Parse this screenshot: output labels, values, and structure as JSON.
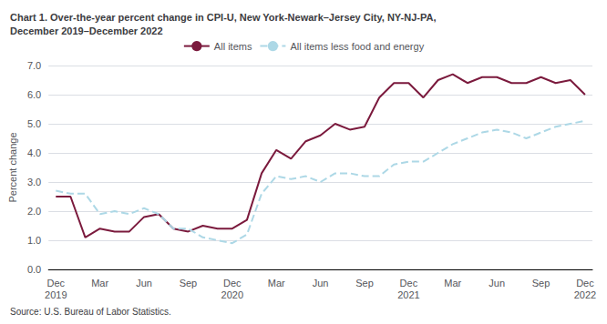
{
  "chart_data": {
    "type": "line",
    "title": "Chart 1. Over-the-year percent change in CPI-U, New York-Newark–Jersey City, NY-NJ-PA,\nDecember 2019–December 2022",
    "ylabel": "Percent change",
    "source": "Source: U.S. Bureau of Labor Statistics.",
    "categories": [
      "Dec\n2019",
      null,
      null,
      "Mar",
      null,
      null,
      "Jun",
      null,
      null,
      "Sep",
      null,
      null,
      "Dec\n2020",
      null,
      null,
      "Mar",
      null,
      null,
      "Jun",
      null,
      null,
      "Sep",
      null,
      null,
      "Dec\n2021",
      null,
      null,
      "Mar",
      null,
      null,
      "Jun",
      null,
      null,
      "Sep",
      null,
      null,
      "Dec\n2022"
    ],
    "series": [
      {
        "name": "All items",
        "color": "#7b1a3d",
        "line_style": "solid",
        "values": [
          2.5,
          2.5,
          1.1,
          1.4,
          1.3,
          1.3,
          1.8,
          1.9,
          1.4,
          1.3,
          1.5,
          1.4,
          1.4,
          1.7,
          3.3,
          4.1,
          3.8,
          4.4,
          4.6,
          5.0,
          4.8,
          4.9,
          5.9,
          6.4,
          6.4,
          5.9,
          6.5,
          6.7,
          6.4,
          6.6,
          6.6,
          6.4,
          6.4,
          6.6,
          6.4,
          6.5,
          6.0
        ]
      },
      {
        "name": "All items less food and energy",
        "color": "#add8e6",
        "line_style": "dashed",
        "values": [
          2.7,
          2.6,
          2.6,
          1.9,
          2.0,
          1.9,
          2.1,
          1.9,
          1.4,
          1.4,
          1.1,
          1.0,
          0.9,
          1.2,
          2.6,
          3.2,
          3.1,
          3.2,
          3.0,
          3.3,
          3.3,
          3.2,
          3.2,
          3.6,
          3.7,
          3.7,
          4.0,
          4.3,
          4.5,
          4.7,
          4.8,
          4.7,
          4.5,
          4.7,
          4.9,
          5.0,
          5.1
        ]
      }
    ],
    "ylim": [
      0.0,
      7.0
    ],
    "yticks": [
      {
        "value": 0,
        "label": "0.0"
      },
      {
        "value": 1,
        "label": "1.0"
      },
      {
        "value": 2,
        "label": "2.0"
      },
      {
        "value": 3,
        "label": "3.0"
      },
      {
        "value": 4,
        "label": "4.0"
      },
      {
        "value": 5,
        "label": "5.0"
      },
      {
        "value": 6,
        "label": "6.0"
      },
      {
        "value": 7,
        "label": "7.0"
      }
    ],
    "grid": true,
    "legend": "top"
  }
}
